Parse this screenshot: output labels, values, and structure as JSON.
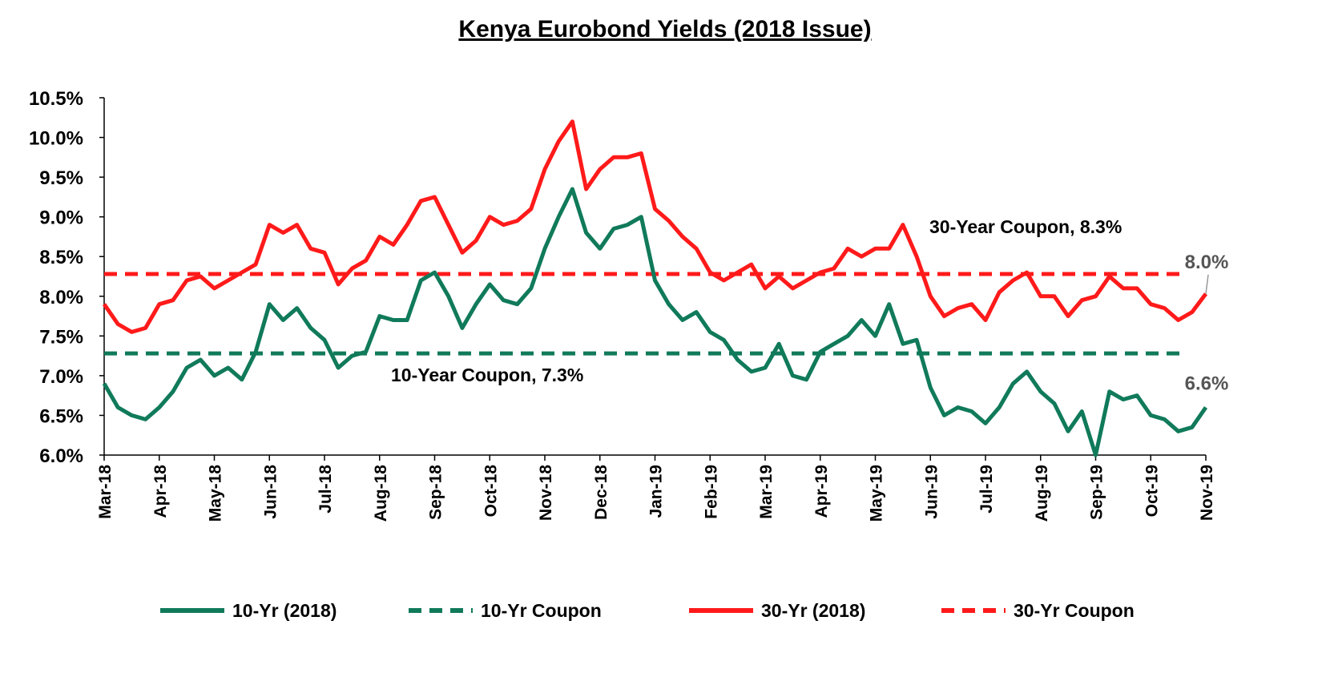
{
  "chart_data": {
    "type": "line",
    "title": "Kenya Eurobond Yields (2018 Issue)",
    "categories": [
      "Mar-18",
      null,
      null,
      null,
      "Apr-18",
      null,
      null,
      null,
      "May-18",
      null,
      null,
      null,
      "Jun-18",
      null,
      null,
      null,
      "Jul-18",
      null,
      null,
      null,
      "Aug-18",
      null,
      null,
      null,
      "Sep-18",
      null,
      null,
      null,
      "Oct-18",
      null,
      null,
      null,
      "Nov-18",
      null,
      null,
      null,
      "Dec-18",
      null,
      null,
      null,
      "Jan-19",
      null,
      null,
      null,
      "Feb-19",
      null,
      null,
      null,
      "Mar-19",
      null,
      null,
      null,
      "Apr-19",
      null,
      null,
      null,
      "May-19",
      null,
      null,
      null,
      "Jun-19",
      null,
      null,
      null,
      "Jul-19",
      null,
      null,
      null,
      "Aug-19",
      null,
      null,
      null,
      "Sep-19",
      null,
      null,
      null,
      "Oct-19",
      null,
      null,
      null,
      "Nov-19"
    ],
    "series": [
      {
        "name": "10-Yr (2018)",
        "color": "#107a5a",
        "values": [
          6.9,
          6.6,
          6.5,
          6.45,
          6.6,
          6.8,
          7.1,
          7.2,
          7.0,
          7.1,
          6.95,
          7.3,
          7.9,
          7.7,
          7.85,
          7.6,
          7.45,
          7.1,
          7.25,
          7.3,
          7.75,
          7.7,
          7.7,
          8.2,
          8.3,
          8.0,
          7.6,
          7.9,
          8.15,
          7.95,
          7.9,
          8.1,
          8.6,
          9.0,
          9.35,
          8.8,
          8.6,
          8.85,
          8.9,
          9.0,
          8.2,
          7.9,
          7.7,
          7.8,
          7.55,
          7.45,
          7.2,
          7.05,
          7.1,
          7.4,
          7.0,
          6.95,
          7.3,
          7.4,
          7.5,
          7.7,
          7.5,
          7.9,
          7.4,
          7.45,
          6.85,
          6.5,
          6.6,
          6.55,
          6.4,
          6.6,
          6.9,
          7.05,
          6.8,
          6.65,
          6.3,
          6.55,
          6.0,
          6.8,
          6.7,
          6.75,
          6.5,
          6.45,
          6.3,
          6.35,
          6.6
        ],
        "value_labels": [
          null,
          null,
          null,
          null,
          null,
          null,
          null,
          null,
          null,
          null,
          null,
          null,
          null,
          null,
          null,
          null,
          null,
          null,
          null,
          null,
          null,
          null,
          null,
          null,
          null,
          null,
          null,
          null,
          null,
          null,
          null,
          null,
          null,
          null,
          null,
          null,
          null,
          null,
          null,
          null,
          null,
          null,
          null,
          null,
          null,
          null,
          null,
          null,
          null,
          null,
          null,
          null,
          null,
          null,
          null,
          null,
          null,
          null,
          null,
          null,
          null,
          null,
          null,
          null,
          null,
          null,
          null,
          null,
          null,
          null,
          null,
          null,
          null,
          null,
          null,
          null,
          null,
          null,
          null,
          null,
          "6.6%"
        ]
      },
      {
        "name": "30-Yr (2018)",
        "color": "#ff1a1a",
        "values": [
          7.9,
          7.65,
          7.55,
          7.6,
          7.9,
          7.95,
          8.2,
          8.25,
          8.1,
          8.2,
          8.3,
          8.4,
          8.9,
          8.8,
          8.9,
          8.6,
          8.55,
          8.15,
          8.35,
          8.45,
          8.75,
          8.65,
          8.9,
          9.2,
          9.25,
          8.9,
          8.55,
          8.7,
          9.0,
          8.9,
          8.95,
          9.1,
          9.6,
          9.95,
          10.2,
          9.35,
          9.6,
          9.75,
          9.75,
          9.8,
          9.1,
          8.95,
          8.75,
          8.6,
          8.3,
          8.2,
          8.3,
          8.4,
          8.1,
          8.25,
          8.1,
          8.2,
          8.3,
          8.35,
          8.6,
          8.5,
          8.6,
          8.6,
          8.9,
          8.5,
          8.0,
          7.75,
          7.85,
          7.9,
          7.7,
          8.05,
          8.2,
          8.3,
          8.0,
          8.0,
          7.75,
          7.95,
          8.0,
          8.25,
          8.1,
          8.1,
          7.9,
          7.85,
          7.7,
          7.8,
          8.03
        ],
        "value_labels": [
          null,
          null,
          null,
          null,
          null,
          null,
          null,
          null,
          null,
          null,
          null,
          null,
          null,
          null,
          null,
          null,
          null,
          null,
          null,
          null,
          null,
          null,
          null,
          null,
          null,
          null,
          null,
          null,
          null,
          null,
          null,
          null,
          null,
          null,
          null,
          null,
          null,
          null,
          null,
          null,
          null,
          null,
          null,
          null,
          null,
          null,
          null,
          null,
          null,
          null,
          null,
          null,
          null,
          null,
          null,
          null,
          null,
          null,
          null,
          null,
          null,
          null,
          null,
          null,
          null,
          null,
          null,
          null,
          null,
          null,
          null,
          null,
          null,
          null,
          null,
          null,
          null,
          null,
          null,
          null,
          "8.0%"
        ]
      }
    ],
    "reference_lines": [
      {
        "name": "10-Yr Coupon",
        "value": 7.28,
        "color": "#107a5a",
        "label": "10-Year Coupon,  7.3%"
      },
      {
        "name": "30-Yr Coupon",
        "value": 8.28,
        "color": "#ff1a1a",
        "label": "30-Year Coupon,  8.3%"
      }
    ],
    "ylim": [
      6,
      10.5
    ],
    "yticks": [
      {
        "value": 6,
        "label": "6.0%"
      },
      {
        "value": 6.5,
        "label": "6.5%"
      },
      {
        "value": 7,
        "label": "7.0%"
      },
      {
        "value": 7.5,
        "label": "7.5%"
      },
      {
        "value": 8,
        "label": "8.0%"
      },
      {
        "value": 8.5,
        "label": "8.5%"
      },
      {
        "value": 9,
        "label": "9.0%"
      },
      {
        "value": 9.5,
        "label": "9.5%"
      },
      {
        "value": 10,
        "label": "10.0%"
      },
      {
        "value": 10.5,
        "label": "10.5%"
      }
    ],
    "grid": false,
    "legend": "bottom"
  }
}
